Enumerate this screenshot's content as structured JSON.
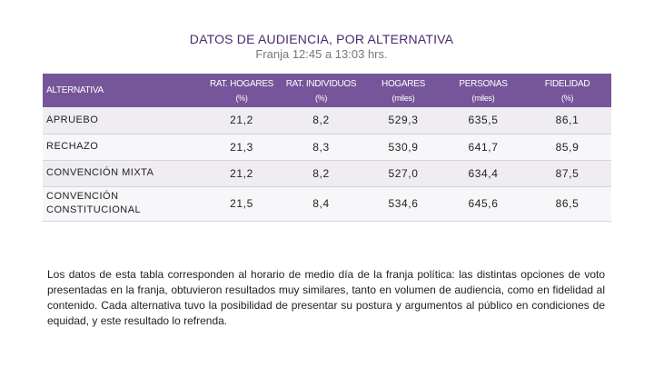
{
  "title": "DATOS DE AUDIENCIA, POR ALTERNATIVA",
  "subtitle": "Franja 12:45 a 13:03 hrs.",
  "table": {
    "headers": [
      {
        "line1": "ALTERNATIVA",
        "line2": ""
      },
      {
        "line1": "RAT. HOGARES",
        "line2": "(%)"
      },
      {
        "line1": "RAT. INDIVIDUOS",
        "line2": "(%)"
      },
      {
        "line1": "HOGARES",
        "line2": "(miles)"
      },
      {
        "line1": "PERSONAS",
        "line2": "(miles)"
      },
      {
        "line1": "FIDELIDAD",
        "line2": "(%)"
      }
    ],
    "rows": [
      {
        "alternativa": "APRUEBO",
        "rat_hogares": "21,2",
        "rat_individuos": "8,2",
        "hogares": "529,3",
        "personas": "635,5",
        "fidelidad": "86,1"
      },
      {
        "alternativa": "RECHAZO",
        "rat_hogares": "21,3",
        "rat_individuos": "8,3",
        "hogares": "530,9",
        "personas": "641,7",
        "fidelidad": "85,9"
      },
      {
        "alternativa": "CONVENCIÓN MIXTA",
        "rat_hogares": "21,2",
        "rat_individuos": "8,2",
        "hogares": "527,0",
        "personas": "634,4",
        "fidelidad": "87,5"
      },
      {
        "alternativa": "CONVENCIÓN CONSTITUCIONAL",
        "rat_hogares": "21,5",
        "rat_individuos": "8,4",
        "hogares": "534,6",
        "personas": "645,6",
        "fidelidad": "86,5"
      }
    ]
  },
  "note": "Los datos de esta tabla corresponden al horario de medio día de la franja política: las distintas opciones de voto presentadas en la franja, obtuvieron resultados muy similares, tanto en volumen de audiencia, como en fidelidad al contenido. Cada alternativa tuvo la posibilidad de presentar su postura y argumentos al público en condiciones de equidad, y este resultado lo refrenda.",
  "colors": {
    "header_bg": "#76559a",
    "title": "#4a2a6e",
    "row_a": "#efedf2",
    "row_b": "#f7f6f9"
  }
}
